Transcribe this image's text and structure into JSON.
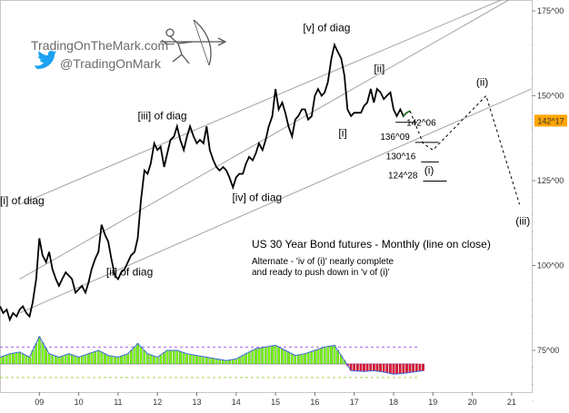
{
  "brand": {
    "site": "TradingOnTheMark.com",
    "handle": "@TradingOnMark",
    "twitter_color": "#1da1f2"
  },
  "chart_data": {
    "type": "line",
    "title": "US 30 Year Bond futures - Monthly (line on close)",
    "note_lines": [
      "Alternate - 'iv of (i)' nearly complete",
      "and ready to push down in 'v of (i)'"
    ],
    "x_ticks": [
      "09",
      "10",
      "11",
      "12",
      "13",
      "14",
      "15",
      "16",
      "17",
      "18",
      "19",
      "20",
      "21"
    ],
    "y_ticks": [
      "175^00",
      "150^00",
      "125^00",
      "100^00",
      "75^00"
    ],
    "ylim": [
      60,
      178
    ],
    "last_price": "142^17",
    "last_price_value": 142.53,
    "price_series": [
      [
        2008.0,
        88
      ],
      [
        2008.08,
        86
      ],
      [
        2008.17,
        87
      ],
      [
        2008.25,
        84
      ],
      [
        2008.33,
        86
      ],
      [
        2008.42,
        85
      ],
      [
        2008.5,
        87
      ],
      [
        2008.58,
        88
      ],
      [
        2008.67,
        86
      ],
      [
        2008.75,
        85
      ],
      [
        2008.83,
        89
      ],
      [
        2008.92,
        96
      ],
      [
        2009.0,
        108
      ],
      [
        2009.08,
        103
      ],
      [
        2009.17,
        101
      ],
      [
        2009.25,
        104
      ],
      [
        2009.33,
        99
      ],
      [
        2009.42,
        96
      ],
      [
        2009.5,
        94
      ],
      [
        2009.58,
        96
      ],
      [
        2009.67,
        98
      ],
      [
        2009.75,
        97
      ],
      [
        2009.83,
        96
      ],
      [
        2009.92,
        92
      ],
      [
        2010.0,
        93
      ],
      [
        2010.08,
        94
      ],
      [
        2010.17,
        92
      ],
      [
        2010.25,
        95
      ],
      [
        2010.33,
        99
      ],
      [
        2010.42,
        102
      ],
      [
        2010.5,
        104
      ],
      [
        2010.58,
        112
      ],
      [
        2010.67,
        109
      ],
      [
        2010.75,
        107
      ],
      [
        2010.83,
        102
      ],
      [
        2010.92,
        97
      ],
      [
        2011.0,
        96
      ],
      [
        2011.08,
        98
      ],
      [
        2011.17,
        99
      ],
      [
        2011.25,
        101
      ],
      [
        2011.33,
        103
      ],
      [
        2011.42,
        104
      ],
      [
        2011.5,
        108
      ],
      [
        2011.58,
        119
      ],
      [
        2011.67,
        128
      ],
      [
        2011.75,
        127
      ],
      [
        2011.83,
        130
      ],
      [
        2011.92,
        136
      ],
      [
        2012.0,
        134
      ],
      [
        2012.08,
        135
      ],
      [
        2012.17,
        129
      ],
      [
        2012.25,
        133
      ],
      [
        2012.33,
        137
      ],
      [
        2012.42,
        138
      ],
      [
        2012.5,
        141
      ],
      [
        2012.58,
        137
      ],
      [
        2012.67,
        134
      ],
      [
        2012.75,
        138
      ],
      [
        2012.83,
        141
      ],
      [
        2012.92,
        138
      ],
      [
        2013.0,
        136
      ],
      [
        2013.08,
        137
      ],
      [
        2013.17,
        136
      ],
      [
        2013.25,
        141
      ],
      [
        2013.33,
        134
      ],
      [
        2013.42,
        131
      ],
      [
        2013.5,
        129
      ],
      [
        2013.58,
        128
      ],
      [
        2013.67,
        129
      ],
      [
        2013.75,
        128
      ],
      [
        2013.83,
        126
      ],
      [
        2013.92,
        123
      ],
      [
        2014.0,
        126
      ],
      [
        2014.08,
        127
      ],
      [
        2014.17,
        127
      ],
      [
        2014.25,
        130
      ],
      [
        2014.33,
        132
      ],
      [
        2014.42,
        131
      ],
      [
        2014.5,
        133
      ],
      [
        2014.58,
        136
      ],
      [
        2014.67,
        134
      ],
      [
        2014.75,
        137
      ],
      [
        2014.83,
        141
      ],
      [
        2014.92,
        144
      ],
      [
        2015.0,
        152
      ],
      [
        2015.08,
        146
      ],
      [
        2015.17,
        148
      ],
      [
        2015.25,
        145
      ],
      [
        2015.33,
        141
      ],
      [
        2015.42,
        138
      ],
      [
        2015.5,
        143
      ],
      [
        2015.58,
        144
      ],
      [
        2015.67,
        146
      ],
      [
        2015.75,
        146
      ],
      [
        2015.83,
        143
      ],
      [
        2015.92,
        144
      ],
      [
        2016.0,
        150
      ],
      [
        2016.08,
        152
      ],
      [
        2016.17,
        150
      ],
      [
        2016.25,
        151
      ],
      [
        2016.33,
        154
      ],
      [
        2016.42,
        161
      ],
      [
        2016.5,
        165
      ],
      [
        2016.58,
        163
      ],
      [
        2016.67,
        161
      ],
      [
        2016.75,
        156
      ],
      [
        2016.83,
        146
      ],
      [
        2016.92,
        144
      ],
      [
        2017.0,
        145
      ],
      [
        2017.08,
        145
      ],
      [
        2017.17,
        145
      ],
      [
        2017.25,
        147
      ],
      [
        2017.33,
        148
      ],
      [
        2017.42,
        152
      ],
      [
        2017.5,
        148
      ],
      [
        2017.58,
        152
      ],
      [
        2017.67,
        151
      ],
      [
        2017.75,
        149
      ],
      [
        2017.83,
        150
      ],
      [
        2017.92,
        151
      ],
      [
        2018.0,
        146
      ],
      [
        2018.08,
        144
      ],
      [
        2018.17,
        146
      ],
      [
        2018.25,
        144
      ],
      [
        2018.33,
        145
      ],
      [
        2018.42,
        145.5
      ]
    ],
    "projection": [
      [
        2018.42,
        145.5
      ],
      [
        2018.75,
        136
      ],
      [
        2019.0,
        134
      ],
      [
        2020.35,
        150
      ],
      [
        2021.2,
        118
      ]
    ],
    "channel": {
      "upper": [
        [
          2008.5,
          118
        ],
        [
          2021.5,
          182
        ]
      ],
      "middle": [
        [
          2008.5,
          96
        ],
        [
          2021.5,
          182
        ]
      ],
      "lower": [
        [
          2008.5,
          86
        ],
        [
          2021.5,
          152
        ]
      ]
    },
    "wave_labels": [
      {
        "text": "[i] of diag",
        "x": 2008.0,
        "y": 118
      },
      {
        "text": "[ii] of diag",
        "x": 2010.7,
        "y": 97
      },
      {
        "text": "[iii] of diag",
        "x": 2011.5,
        "y": 143
      },
      {
        "text": "[iv] of diag",
        "x": 2013.9,
        "y": 119
      },
      {
        "text": "[v] of diag",
        "x": 2015.7,
        "y": 169
      },
      {
        "text": "[ii]",
        "x": 2017.5,
        "y": 157
      },
      {
        "text": "[i]",
        "x": 2016.6,
        "y": 138
      },
      {
        "text": "(i)",
        "x": 2018.78,
        "y": 127
      },
      {
        "text": "(ii)",
        "x": 2020.1,
        "y": 153
      },
      {
        "text": "(iii)",
        "x": 2021.1,
        "y": 112
      }
    ],
    "levels": [
      {
        "label": "142^06",
        "value": 142.19,
        "x_from": 2018.05,
        "x_to": 2018.6
      },
      {
        "label": "136^09",
        "value": 136.28,
        "x_from": 2018.55,
        "x_to": 2019.15
      },
      {
        "label": "130^16",
        "value": 130.5,
        "x_from": 2018.7,
        "x_to": 2019.15
      },
      {
        "label": "124^28",
        "value": 124.88,
        "x_from": 2018.75,
        "x_to": 2019.35
      }
    ],
    "oscillator": {
      "upper_dash": 76,
      "lower_dash": 67,
      "baseline": 71,
      "values": [
        [
          2008.0,
          73
        ],
        [
          2008.25,
          74
        ],
        [
          2008.5,
          74.5
        ],
        [
          2008.75,
          73
        ],
        [
          2009.0,
          79
        ],
        [
          2009.25,
          74
        ],
        [
          2009.5,
          73
        ],
        [
          2009.75,
          74
        ],
        [
          2010.0,
          73
        ],
        [
          2010.25,
          74
        ],
        [
          2010.5,
          75
        ],
        [
          2010.75,
          73.5
        ],
        [
          2011.0,
          73
        ],
        [
          2011.25,
          74
        ],
        [
          2011.5,
          77
        ],
        [
          2011.75,
          74
        ],
        [
          2012.0,
          73
        ],
        [
          2012.25,
          75
        ],
        [
          2012.5,
          75
        ],
        [
          2012.75,
          74
        ],
        [
          2013.0,
          73.5
        ],
        [
          2013.25,
          73
        ],
        [
          2013.5,
          72.5
        ],
        [
          2013.75,
          72
        ],
        [
          2014.0,
          72.5
        ],
        [
          2014.25,
          74
        ],
        [
          2014.5,
          75.5
        ],
        [
          2014.75,
          76
        ],
        [
          2015.0,
          76.5
        ],
        [
          2015.25,
          75
        ],
        [
          2015.5,
          73.5
        ],
        [
          2015.75,
          74
        ],
        [
          2016.0,
          75
        ],
        [
          2016.25,
          76
        ],
        [
          2016.5,
          76.5
        ],
        [
          2016.75,
          72
        ],
        [
          2016.92,
          69
        ],
        [
          2017.25,
          68.8
        ],
        [
          2017.5,
          69
        ],
        [
          2017.75,
          68.6
        ],
        [
          2018.0,
          68
        ],
        [
          2018.25,
          68.2
        ],
        [
          2018.5,
          68.6
        ],
        [
          2018.75,
          69
        ]
      ]
    }
  }
}
